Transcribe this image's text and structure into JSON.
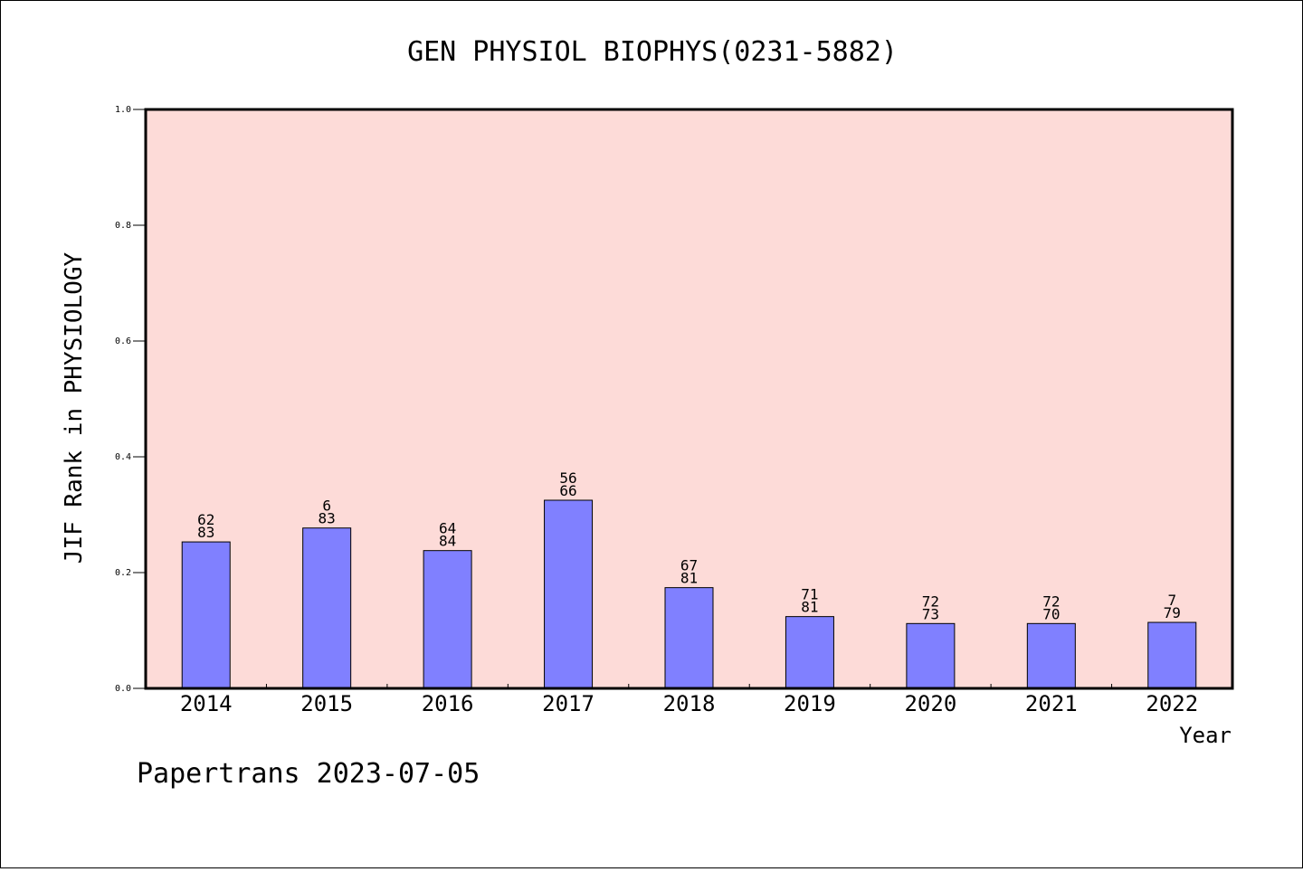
{
  "chart_data": {
    "type": "bar",
    "title": "GEN PHYSIOL BIOPHYS(0231-5882)",
    "xlabel": "Year",
    "ylabel": "JIF Rank in PHYSIOLOGY",
    "ylim": [
      0,
      1.0
    ],
    "yticks": [
      "0.0",
      "0.2",
      "0.4",
      "0.6",
      "0.8",
      "1.0"
    ],
    "categories": [
      "2014",
      "2015",
      "2016",
      "2017",
      "2018",
      "2019",
      "2020",
      "2021",
      "2022"
    ],
    "values": [
      0.253,
      0.277,
      0.238,
      0.325,
      0.174,
      0.124,
      0.112,
      0.112,
      0.114
    ],
    "labels_top": [
      "62",
      "6",
      "64",
      "56",
      "67",
      "71",
      "72",
      "72",
      "7"
    ],
    "labels_bottom": [
      "83",
      "83",
      "84",
      "66",
      "81",
      "81",
      "73",
      "70",
      "79"
    ],
    "colors": {
      "plot_bg": "#fddbd8",
      "bar_fill": "#8080ff",
      "bar_edge": "#000000"
    },
    "grid": false
  },
  "footer": "Papertrans 2023-07-05"
}
